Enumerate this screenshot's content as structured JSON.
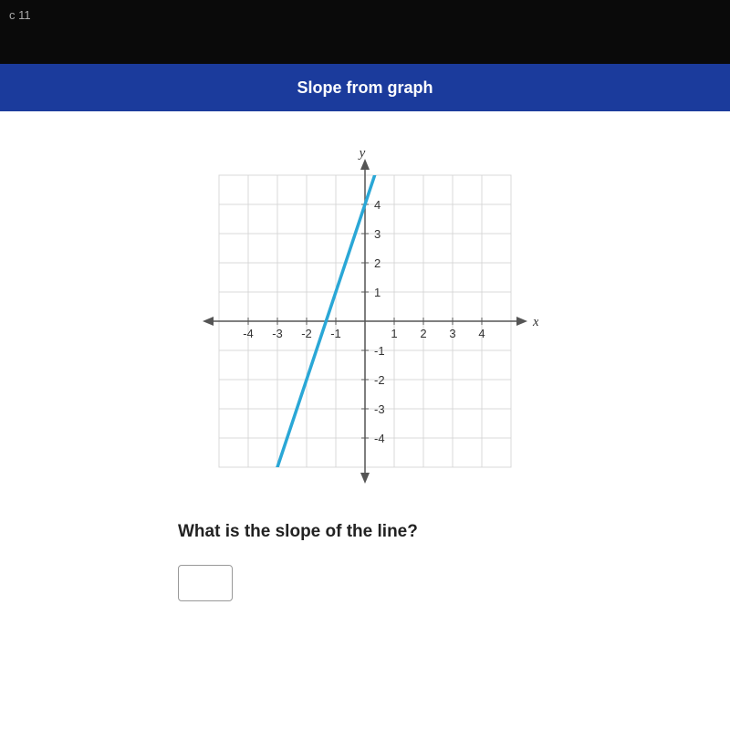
{
  "nav": {
    "breadcrumb": "c 11"
  },
  "header": {
    "title": "Slope from graph"
  },
  "chart": {
    "type": "line",
    "x_label": "x",
    "y_label": "y",
    "xlim": [
      -5,
      5
    ],
    "ylim": [
      -5,
      5
    ],
    "xtick_step": 1,
    "ytick_step": 1,
    "xtick_labels_neg": [
      "-4",
      "-3",
      "-2",
      "-1"
    ],
    "xtick_labels_pos": [
      "1",
      "2",
      "3",
      "4"
    ],
    "ytick_labels_neg": [
      "-1",
      "-2",
      "-3",
      "-4"
    ],
    "ytick_labels_pos": [
      "1",
      "2",
      "3",
      "4"
    ],
    "grid_color": "#d9d9d9",
    "axis_color": "#555555",
    "tick_label_color": "#333333",
    "background_color": "#ffffff",
    "line_color": "#2aa7d6",
    "line_width": 3.5,
    "line_points": [
      {
        "x": -3,
        "y": -5
      },
      {
        "x": 0.333,
        "y": 5
      }
    ]
  },
  "question": {
    "text": "What is the slope of the line?",
    "answer": ""
  }
}
